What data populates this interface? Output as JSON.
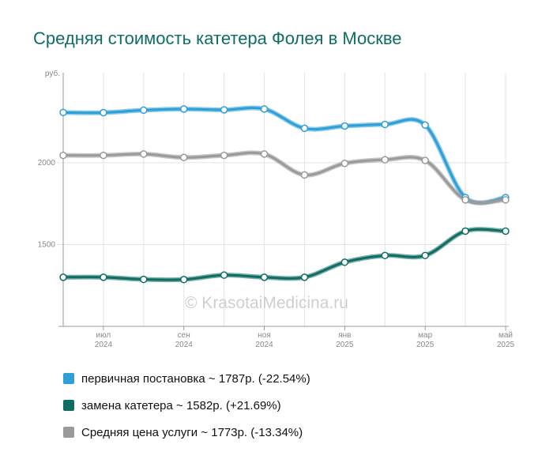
{
  "chart_data": {
    "type": "line",
    "title": "Средняя стоимость катетера Фолея в Москве",
    "yunit": "руб.",
    "ylim": [
      1000,
      2550
    ],
    "yticks": [
      2000,
      1500
    ],
    "x": [
      "2024-06",
      "2024-07",
      "2024-08",
      "2024-09",
      "2024-10",
      "2024-11",
      "2024-12",
      "2025-01",
      "2025-02",
      "2025-03",
      "2025-04",
      "2025-05"
    ],
    "xticks": [
      {
        "month": "июл",
        "year": "2024",
        "x": "2024-07"
      },
      {
        "month": "сен",
        "year": "2024",
        "x": "2024-09"
      },
      {
        "month": "ноя",
        "year": "2024",
        "x": "2024-11"
      },
      {
        "month": "янв",
        "year": "2025",
        "x": "2025-01"
      },
      {
        "month": "мар",
        "year": "2025",
        "x": "2025-03"
      },
      {
        "month": "май",
        "year": "2025",
        "x": "2025-05"
      }
    ],
    "series": [
      {
        "name": "первичная постановка",
        "color": "#2f9fd8",
        "values": [
          2307,
          2306,
          2321,
          2328,
          2323,
          2328,
          2210,
          2224,
          2234,
          2230,
          1787,
          1787
        ],
        "legend": "первичная постановка ~ 1787р. (-22.54%)"
      },
      {
        "name": "замена катетера",
        "color": "#0f6d64",
        "values": [
          1300,
          1300,
          1287,
          1286,
          1313,
          1300,
          1300,
          1392,
          1433,
          1433,
          1582,
          1582
        ],
        "legend": "замена катетера ~ 1582р. (+21.69%)"
      },
      {
        "name": "Средняя цена услуги",
        "color": "#9a9a9a",
        "values": [
          2045,
          2045,
          2053,
          2032,
          2045,
          2053,
          1925,
          1996,
          2018,
          2014,
          1773,
          1773
        ],
        "legend": "Средняя цена услуги ~ 1773р. (-13.34%)"
      }
    ],
    "grid": true,
    "legend_position": "bottom"
  },
  "watermark": "© KrasotaiMedicina.ru"
}
